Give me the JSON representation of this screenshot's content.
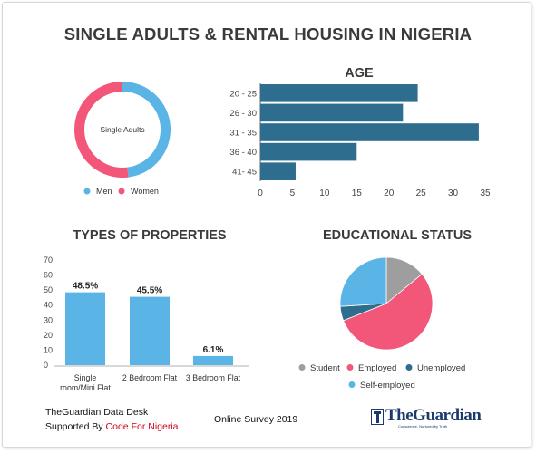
{
  "title": "SINGLE ADULTS & RENTAL HOUSING IN NIGERIA",
  "colors": {
    "men": "#5ab4e5",
    "women": "#f2577a",
    "bar_dark": "#2e6d8e",
    "bar_light": "#5ab4e5",
    "student": "#9e9e9e",
    "employed": "#f2577a",
    "unemployed": "#2e6d8e",
    "self_employed": "#5ab4e5"
  },
  "chart_data": [
    {
      "type": "pie",
      "variant": "donut",
      "center_label": "Single Adults",
      "categories": [
        "Men",
        "Women"
      ],
      "values": [
        48,
        52
      ],
      "legend": [
        "Men",
        "Women"
      ],
      "legend_position": "bottom"
    },
    {
      "type": "bar",
      "orientation": "horizontal",
      "title": "AGE",
      "categories": [
        "20 - 25",
        "26 - 30",
        "31 - 35",
        "36 - 40",
        "41- 45"
      ],
      "values": [
        24.5,
        22.2,
        34,
        15,
        5.5
      ],
      "xlim": [
        0,
        35
      ],
      "xticks": [
        0,
        5,
        10,
        15,
        20,
        25,
        30,
        35
      ]
    },
    {
      "type": "bar",
      "title": "TYPES OF PROPERTIES",
      "categories": [
        "Single room/Mini Flat",
        "2 Bedroom Flat",
        "3 Bedroom Flat"
      ],
      "category_lines": [
        [
          "Single",
          "room/Mini Flat"
        ],
        [
          "2 Bedroom Flat"
        ],
        [
          "3 Bedroom Flat"
        ]
      ],
      "values": [
        48.5,
        45.5,
        6.1
      ],
      "data_labels": [
        "48.5%",
        "45.5%",
        "6.1%"
      ],
      "ylim": [
        0,
        70
      ],
      "yticks": [
        0,
        10,
        20,
        30,
        40,
        50,
        60,
        70
      ]
    },
    {
      "type": "pie",
      "title": "EDUCATIONAL STATUS",
      "categories": [
        "Student",
        "Employed",
        "Unemployed",
        "Self-employed"
      ],
      "values": [
        14,
        55,
        5,
        26
      ],
      "legend_position": "bottom"
    }
  ],
  "footer": {
    "desk": "TheGuardian Data Desk",
    "supported_prefix": "Supported By ",
    "supported_org": "Code For Nigeria",
    "survey": "Online Survey 2019",
    "logo_name": "TheGuardian",
    "logo_tagline": "Conscience, Nurtured by Truth"
  }
}
